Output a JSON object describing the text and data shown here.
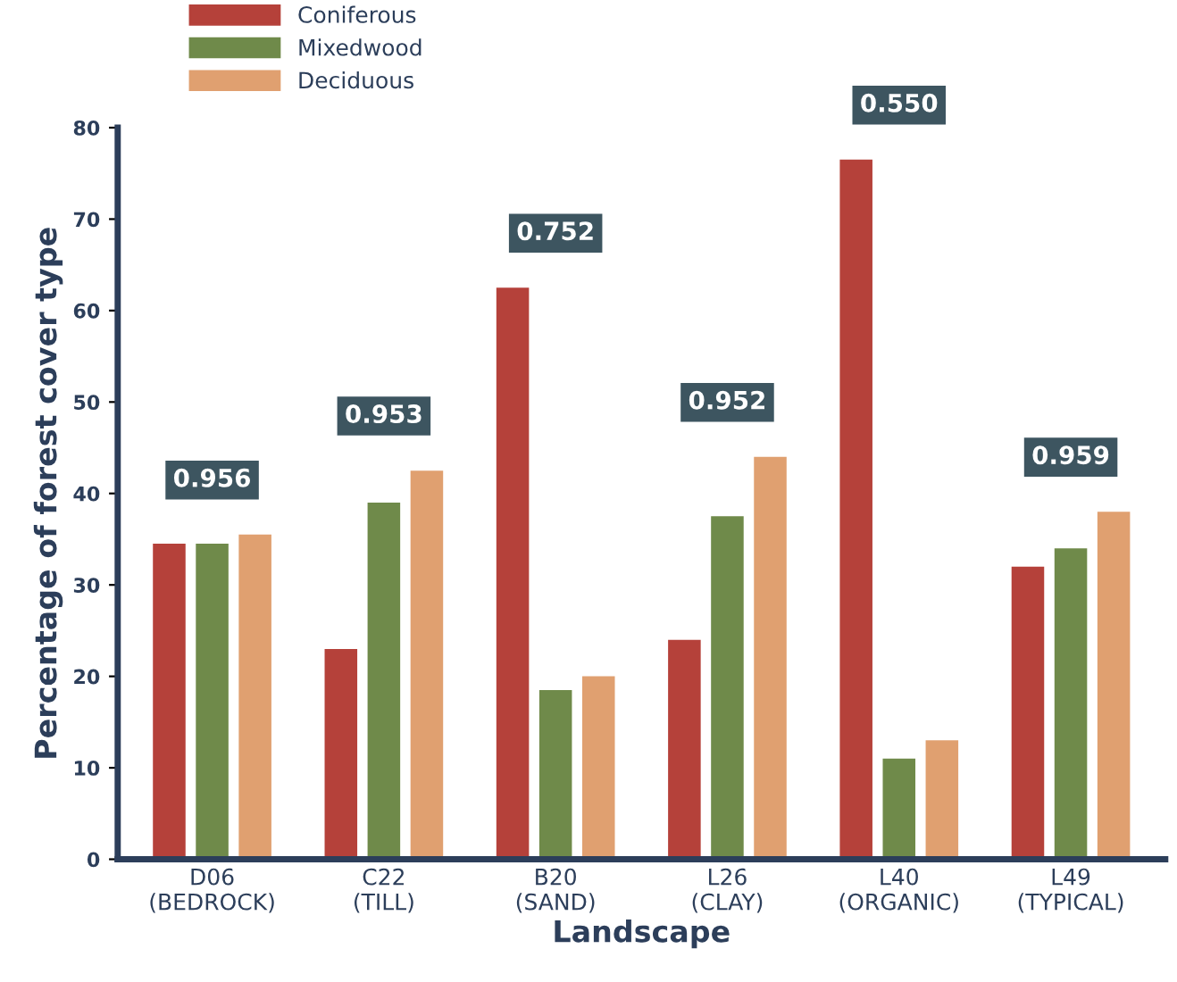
{
  "chart_data": {
    "type": "bar",
    "xlabel": "Landscape",
    "ylabel": "Percentage of forest cover type",
    "categories": [
      "D06\n(BEDROCK)",
      "C22\n(TILL)",
      "B20\n(SAND)",
      "L26\n(CLAY)",
      "L40\n(ORGANIC)",
      "L49\n(TYPICAL)"
    ],
    "series": [
      {
        "name": "Coniferous",
        "color": "#b5413a",
        "values": [
          34.5,
          23,
          62.5,
          24,
          76.5,
          32
        ]
      },
      {
        "name": "Mixedwood",
        "color": "#6f8a4a",
        "values": [
          34.5,
          39,
          18.5,
          37.5,
          11,
          34
        ]
      },
      {
        "name": "Deciduous",
        "color": "#e0a070",
        "values": [
          35.5,
          42.5,
          20,
          44,
          13,
          38
        ]
      }
    ],
    "annotations": [
      "0.956",
      "0.953",
      "0.752",
      "0.952",
      "0.550",
      "0.959"
    ],
    "ylim": [
      0,
      80
    ],
    "yticks": [
      0,
      10,
      20,
      30,
      40,
      50,
      60,
      70,
      80
    ],
    "grid": false,
    "legend": "top left"
  }
}
